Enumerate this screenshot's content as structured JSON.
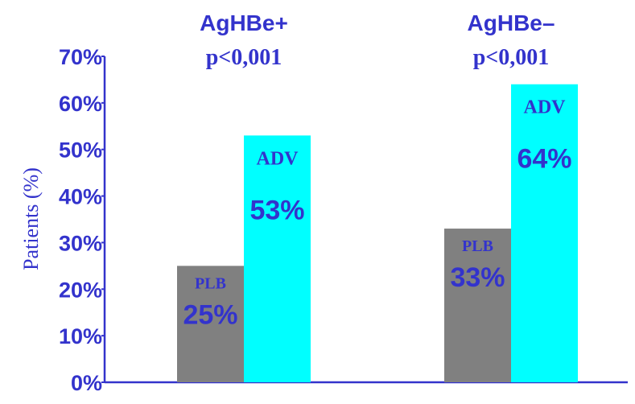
{
  "chart_data": {
    "type": "bar",
    "categories": [
      "AgHBe+",
      "AgHBe–"
    ],
    "group_annotations": [
      "p<0,001",
      "p<0,001"
    ],
    "series": [
      {
        "name": "PLB",
        "values": [
          25,
          33
        ],
        "labels": [
          "25%",
          "33%"
        ],
        "color": "#808080"
      },
      {
        "name": "ADV",
        "values": [
          53,
          64
        ],
        "labels": [
          "53%",
          "64%"
        ],
        "color": "#00ffff"
      }
    ],
    "ylabel": "Patients (%)",
    "ylim": [
      0,
      70
    ],
    "yticks": [
      0,
      10,
      20,
      30,
      40,
      50,
      60,
      70
    ],
    "ytick_labels": [
      "0%",
      "10%",
      "20%",
      "30%",
      "40%",
      "50%",
      "60%",
      "70%"
    ],
    "grid": false,
    "text_color": "#3333cc",
    "axis_color": "#3333cc"
  }
}
